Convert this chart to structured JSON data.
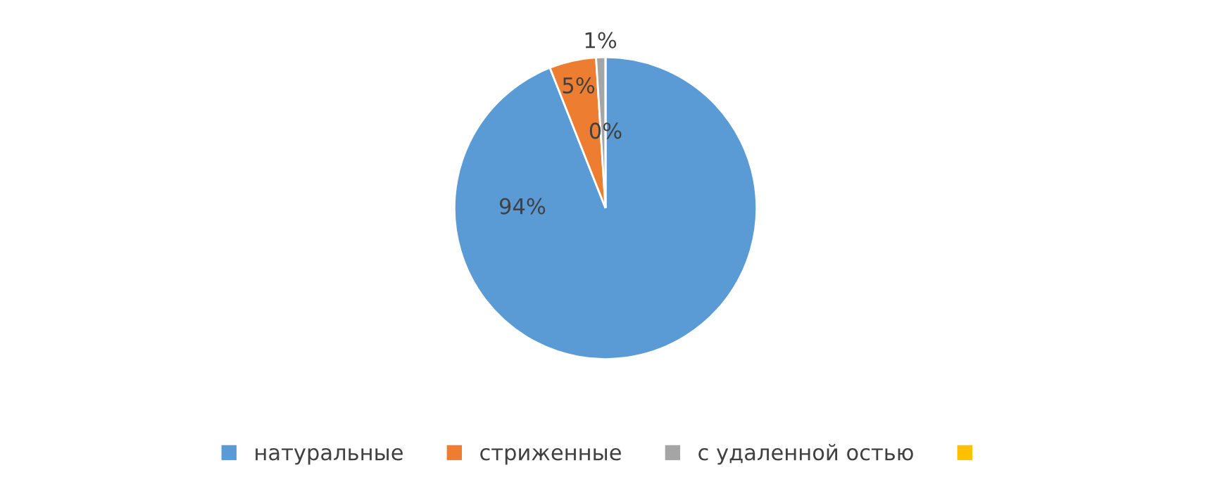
{
  "chart_data": {
    "type": "pie",
    "categories": [
      "натуральные",
      "стриженные",
      "с удаленной остью",
      null
    ],
    "values": [
      94,
      5,
      1,
      0
    ],
    "colors": [
      "#5b9bd5",
      "#ed7d31",
      "#a5a5a5",
      "#ffc000"
    ],
    "value_labels": [
      "94%",
      "5%",
      "1%",
      "0%"
    ],
    "legend": "bottom"
  }
}
